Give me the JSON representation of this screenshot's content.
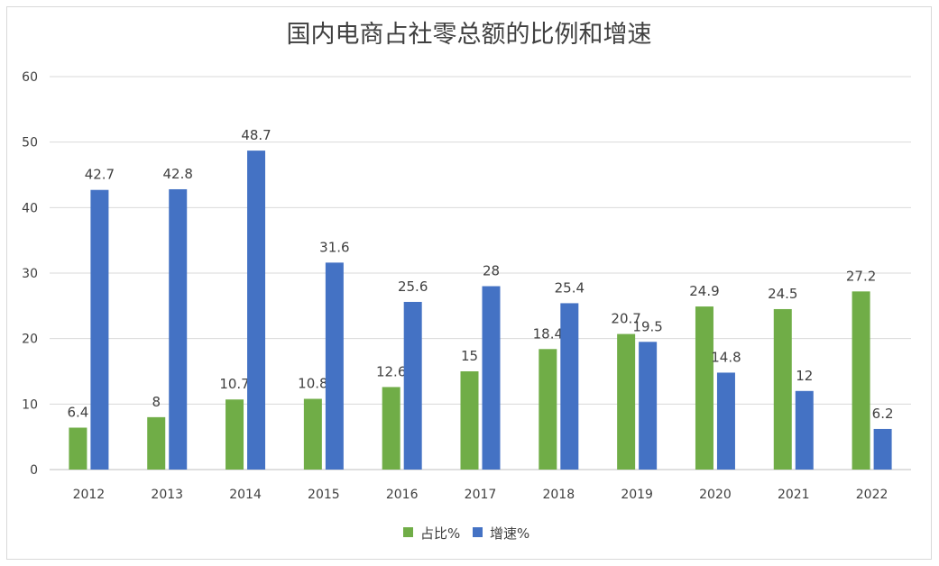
{
  "chart_data": {
    "type": "bar",
    "title": "国内电商占社零总额的比例和增速",
    "categories": [
      "2012",
      "2013",
      "2014",
      "2015",
      "2016",
      "2017",
      "2018",
      "2019",
      "2020",
      "2021",
      "2022"
    ],
    "series": [
      {
        "name": "占比%",
        "color": "#70ad47",
        "values": [
          6.4,
          8,
          10.7,
          10.8,
          12.6,
          15,
          18.4,
          20.7,
          24.9,
          24.5,
          27.2
        ]
      },
      {
        "name": "增速%",
        "color": "#4472c4",
        "values": [
          42.7,
          42.8,
          48.7,
          31.6,
          25.6,
          28,
          25.4,
          19.5,
          14.8,
          12,
          6.2
        ]
      }
    ],
    "ylim": [
      0,
      60
    ],
    "yticks": [
      0,
      10,
      20,
      30,
      40,
      50,
      60
    ],
    "grid": true,
    "legend": "bottom",
    "data_labels": true
  }
}
